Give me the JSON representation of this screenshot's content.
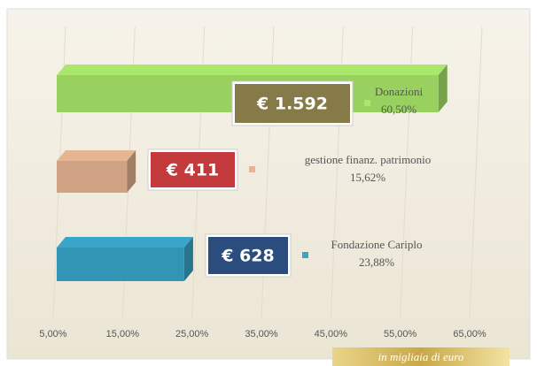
{
  "chart_data": {
    "type": "bar3d",
    "categories": [
      "Donazioni",
      "gestione finanz. patrimonio",
      "Fondazione Cariplo"
    ],
    "values": [
      60.5,
      15.62,
      23.88
    ],
    "value_labels": [
      "60,50%",
      "15,62%",
      "23,88%"
    ],
    "amount_labels": [
      "€ 1.592",
      "€ 411",
      "€ 628"
    ],
    "colors": [
      "#a9e86b",
      "#e6b592",
      "#39a6c9"
    ],
    "label_colors": [
      "#857a48",
      "#c23a3c",
      "#2b4d7e"
    ],
    "xlim": [
      5,
      65
    ],
    "xticks": [
      {
        "value": 5,
        "label": "5,00%"
      },
      {
        "value": 15,
        "label": "15,00%"
      },
      {
        "value": 25,
        "label": "25,00%"
      },
      {
        "value": 35,
        "label": "35,00%"
      },
      {
        "value": 45,
        "label": "45,00%"
      },
      {
        "value": 55,
        "label": "55,00%"
      },
      {
        "value": 65,
        "label": "65,00%"
      }
    ],
    "grid": true,
    "annotation": "in migliaia di euro"
  }
}
